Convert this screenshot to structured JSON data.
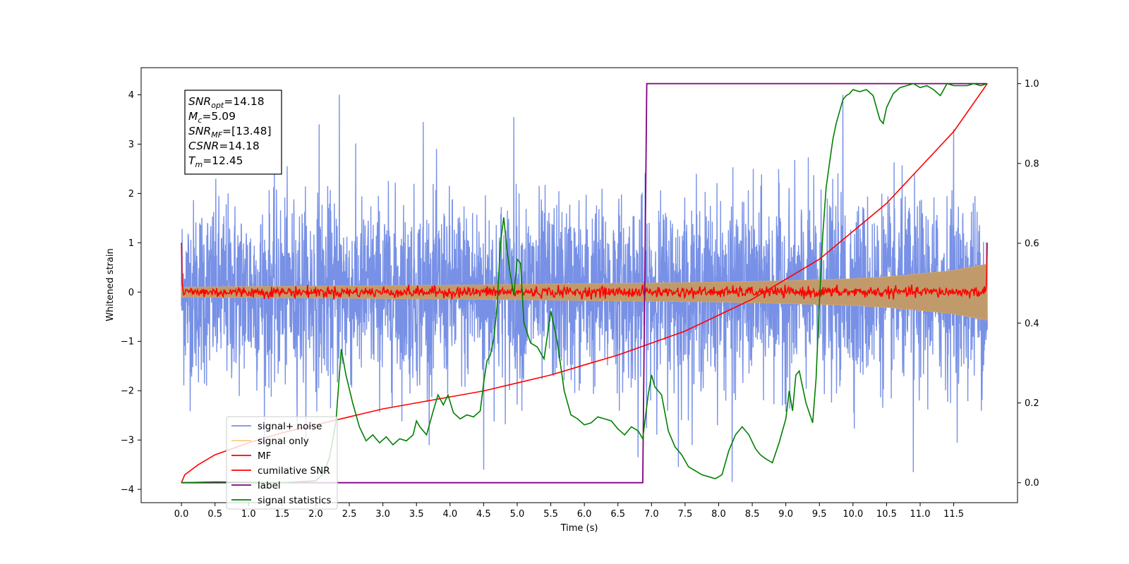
{
  "chart_data": {
    "type": "line",
    "title": "",
    "xlabel": "Time (s)",
    "ylabel": "Whitened strain",
    "y2label": "",
    "xlim": [
      -0.6,
      12.45
    ],
    "ylim": [
      -4.27,
      4.55
    ],
    "y2lim": [
      -0.05,
      1.04
    ],
    "xticks": [
      0.0,
      0.5,
      1.0,
      1.5,
      2.0,
      2.5,
      3.0,
      3.5,
      4.0,
      4.5,
      5.0,
      5.5,
      6.0,
      6.5,
      7.0,
      7.5,
      8.0,
      8.5,
      9.0,
      9.5,
      10.0,
      10.5,
      11.0,
      11.5
    ],
    "xtick_labels": [
      "0.0",
      "0.5",
      "1.0",
      "1.5",
      "2.0",
      "2.5",
      "3.0",
      "3.5",
      "4.0",
      "4.5",
      "5.0",
      "5.5",
      "6.0",
      "6.5",
      "7.0",
      "7.5",
      "8.0",
      "8.5",
      "9.0",
      "9.5",
      "10.0",
      "10.5",
      "11.0",
      "11.5"
    ],
    "yticks": [
      -4,
      -3,
      -2,
      -1,
      0,
      1,
      2,
      3,
      4
    ],
    "ytick_labels": [
      "−4",
      "−3",
      "−2",
      "−1",
      "0",
      "1",
      "2",
      "3",
      "4"
    ],
    "y2ticks": [
      0.0,
      0.2,
      0.4,
      0.6,
      0.8,
      1.0
    ],
    "y2tick_labels": [
      "0.0",
      "0.2",
      "0.4",
      "0.6",
      "0.8",
      "1.0"
    ],
    "grid": false,
    "legend_position": "lower-left",
    "legend": [
      {
        "label": "signal+ noise",
        "color": "#7891e6"
      },
      {
        "label": "signal only",
        "color": "#ffcc80"
      },
      {
        "label": "MF",
        "color": "#ff0000"
      },
      {
        "label": "cumilative SNR",
        "color": "#ff0000"
      },
      {
        "label": "label",
        "color": "#800080"
      },
      {
        "label": "signal statistics",
        "color": "#008000"
      }
    ],
    "annotation": {
      "lines": [
        {
          "main": "SNR",
          "sub": "opt",
          "value": "=14.18"
        },
        {
          "main": "M",
          "sub": "c",
          "value": "=5.09"
        },
        {
          "main": "SNR",
          "sub": "MF",
          "value": "=[13.48]"
        },
        {
          "main": "CSNR",
          "sub": "",
          "value": "=14.18"
        },
        {
          "main": "T",
          "sub": "m",
          "value": "=12.45"
        }
      ]
    },
    "series": [
      {
        "name": "signal+ noise",
        "axis": "left",
        "color": "#7891e6",
        "kind": "noise",
        "x_range": [
          0.0,
          12.0
        ],
        "typical_abs_max": 2.2,
        "peak_max": 4.0,
        "peak_min": -3.85,
        "peaks": [
          {
            "x": 2.35,
            "y": 4.0
          },
          {
            "x": 9.85,
            "y": 4.0
          },
          {
            "x": 4.95,
            "y": 3.55
          },
          {
            "x": 2.05,
            "y": 3.4
          },
          {
            "x": 3.6,
            "y": 3.45
          },
          {
            "x": 11.5,
            "y": 3.3
          },
          {
            "x": 8.2,
            "y": -3.85
          },
          {
            "x": 10.9,
            "y": -3.65
          },
          {
            "x": 4.5,
            "y": -3.6
          },
          {
            "x": 7.4,
            "y": -3.55
          },
          {
            "x": 6.8,
            "y": -3.35
          }
        ]
      },
      {
        "name": "signal only",
        "axis": "left",
        "color": "#c19a6b",
        "kind": "envelope",
        "x": [
          0.0,
          2.0,
          4.0,
          6.0,
          8.0,
          9.0,
          10.0,
          10.5,
          11.0,
          11.5,
          12.0
        ],
        "amplitude": [
          0.1,
          0.12,
          0.14,
          0.17,
          0.2,
          0.23,
          0.27,
          0.31,
          0.37,
          0.44,
          0.57
        ]
      },
      {
        "name": "MF",
        "axis": "left",
        "color": "#ff0000",
        "kind": "noise-small",
        "x_range": [
          0.0,
          12.0
        ],
        "start_value": 1.0,
        "end_value": 1.0,
        "typical_abs_max": 0.15
      },
      {
        "name": "cumilative SNR",
        "axis": "right",
        "color": "#ff0000",
        "x": [
          0.0,
          0.05,
          0.25,
          0.5,
          1.0,
          1.5,
          2.0,
          2.5,
          3.0,
          3.5,
          4.0,
          4.5,
          5.0,
          5.5,
          6.0,
          6.5,
          7.0,
          7.5,
          8.0,
          8.5,
          9.0,
          9.5,
          10.0,
          10.5,
          11.0,
          11.5,
          12.0
        ],
        "y": [
          0.0,
          0.02,
          0.045,
          0.07,
          0.1,
          0.125,
          0.145,
          0.165,
          0.185,
          0.2,
          0.215,
          0.23,
          0.25,
          0.27,
          0.295,
          0.32,
          0.35,
          0.38,
          0.42,
          0.46,
          0.51,
          0.56,
          0.63,
          0.7,
          0.79,
          0.88,
          1.0
        ]
      },
      {
        "name": "label",
        "axis": "right",
        "color": "#800080",
        "x": [
          0.0,
          6.87,
          6.93,
          12.0
        ],
        "y": [
          0.0,
          0.0,
          1.0,
          1.0
        ]
      },
      {
        "name": "signal statistics",
        "axis": "right",
        "color": "#008000",
        "x": [
          0.0,
          0.5,
          1.0,
          1.5,
          2.0,
          2.1,
          2.2,
          2.3,
          2.38,
          2.45,
          2.55,
          2.65,
          2.75,
          2.85,
          2.95,
          3.05,
          3.15,
          3.25,
          3.35,
          3.45,
          3.5,
          3.55,
          3.65,
          3.75,
          3.82,
          3.9,
          3.97,
          4.05,
          4.15,
          4.25,
          4.35,
          4.45,
          4.5,
          4.55,
          4.6,
          4.65,
          4.7,
          4.75,
          4.8,
          4.85,
          4.9,
          4.95,
          5.0,
          5.05,
          5.1,
          5.2,
          5.3,
          5.4,
          5.5,
          5.6,
          5.7,
          5.8,
          5.9,
          6.0,
          6.1,
          6.2,
          6.3,
          6.4,
          6.5,
          6.6,
          6.7,
          6.8,
          6.87,
          6.95,
          7.0,
          7.05,
          7.15,
          7.25,
          7.35,
          7.45,
          7.55,
          7.65,
          7.75,
          7.85,
          7.95,
          8.05,
          8.15,
          8.25,
          8.35,
          8.45,
          8.55,
          8.62,
          8.7,
          8.8,
          8.9,
          9.0,
          9.05,
          9.1,
          9.15,
          9.2,
          9.3,
          9.4,
          9.45,
          9.5,
          9.55,
          9.6,
          9.65,
          9.7,
          9.75,
          9.8,
          9.85,
          9.9,
          9.95,
          10.0,
          10.1,
          10.2,
          10.3,
          10.4,
          10.45,
          10.5,
          10.6,
          10.7,
          10.8,
          10.9,
          11.0,
          11.1,
          11.2,
          11.3,
          11.4,
          11.5,
          11.6,
          11.7,
          11.8,
          11.9,
          12.0
        ],
        "y": [
          0.0,
          0.002,
          0.001,
          0.0,
          0.005,
          0.02,
          0.06,
          0.15,
          0.335,
          0.27,
          0.2,
          0.14,
          0.105,
          0.12,
          0.1,
          0.115,
          0.095,
          0.11,
          0.105,
          0.12,
          0.155,
          0.14,
          0.12,
          0.18,
          0.22,
          0.195,
          0.22,
          0.175,
          0.16,
          0.17,
          0.165,
          0.18,
          0.25,
          0.305,
          0.32,
          0.36,
          0.44,
          0.6,
          0.665,
          0.58,
          0.52,
          0.47,
          0.56,
          0.55,
          0.4,
          0.35,
          0.34,
          0.31,
          0.43,
          0.35,
          0.23,
          0.17,
          0.16,
          0.145,
          0.15,
          0.165,
          0.16,
          0.155,
          0.135,
          0.12,
          0.14,
          0.13,
          0.11,
          0.22,
          0.27,
          0.24,
          0.22,
          0.13,
          0.09,
          0.07,
          0.04,
          0.03,
          0.02,
          0.015,
          0.01,
          0.02,
          0.08,
          0.12,
          0.14,
          0.12,
          0.085,
          0.07,
          0.06,
          0.05,
          0.1,
          0.16,
          0.23,
          0.18,
          0.27,
          0.28,
          0.2,
          0.15,
          0.26,
          0.45,
          0.62,
          0.74,
          0.8,
          0.86,
          0.9,
          0.93,
          0.96,
          0.97,
          0.975,
          0.985,
          0.98,
          0.985,
          0.97,
          0.91,
          0.9,
          0.94,
          0.975,
          0.99,
          0.995,
          1.0,
          0.99,
          0.995,
          0.985,
          0.97,
          1.0,
          0.995,
          0.995,
          0.995,
          1.0,
          0.995,
          1.0
        ]
      }
    ]
  }
}
